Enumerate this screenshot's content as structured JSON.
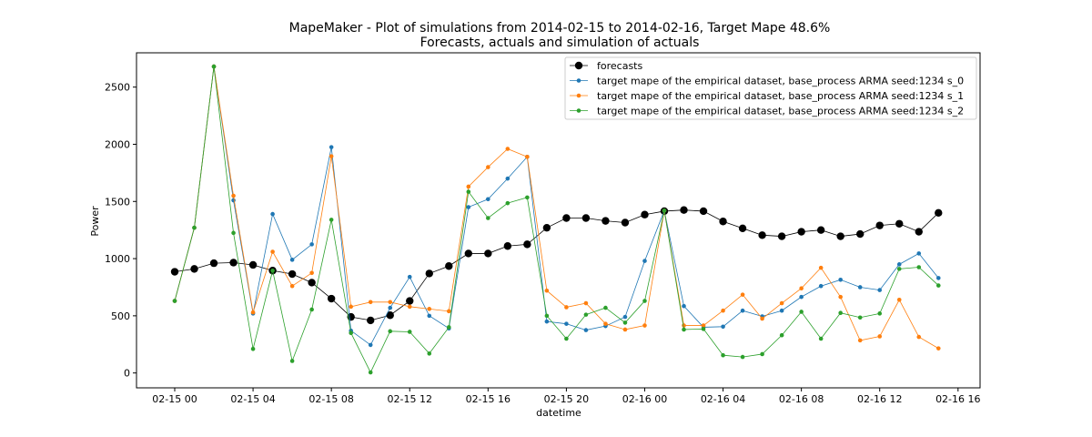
{
  "chart_data": {
    "type": "line",
    "title": "MapeMaker - Plot of simulations from 2014-02-15 to 2014-02-16, Target Mape 48.6%",
    "subtitle": "Forecasts, actuals and simulation of actuals",
    "xlabel": "datetime",
    "ylabel": "Power",
    "x": [
      "02-15 00",
      "02-15 01",
      "02-15 02",
      "02-15 03",
      "02-15 04",
      "02-15 05",
      "02-15 06",
      "02-15 07",
      "02-15 08",
      "02-15 09",
      "02-15 10",
      "02-15 11",
      "02-15 12",
      "02-15 13",
      "02-15 14",
      "02-15 15",
      "02-15 16",
      "02-15 17",
      "02-15 18",
      "02-15 19",
      "02-15 20",
      "02-15 21",
      "02-15 22",
      "02-15 23",
      "02-16 00",
      "02-16 01",
      "02-16 02",
      "02-16 03",
      "02-16 04",
      "02-16 05",
      "02-16 06",
      "02-16 07",
      "02-16 08",
      "02-16 09",
      "02-16 10",
      "02-16 11",
      "02-16 12",
      "02-16 13",
      "02-16 14",
      "02-16 15"
    ],
    "xticks": [
      "02-15 00",
      "02-15 04",
      "02-15 08",
      "02-15 12",
      "02-15 16",
      "02-15 20",
      "02-16 00",
      "02-16 04",
      "02-16 08",
      "02-16 12",
      "02-16 16"
    ],
    "yticks": [
      0,
      500,
      1000,
      1500,
      2000,
      2500
    ],
    "ylim": [
      -130,
      2800
    ],
    "grid": false,
    "legend_position": "top-right",
    "series": [
      {
        "name": "forecasts",
        "color": "#000000",
        "marker": "large",
        "values": [
          885,
          910,
          960,
          965,
          945,
          895,
          865,
          790,
          650,
          490,
          460,
          505,
          630,
          870,
          935,
          1045,
          1045,
          1110,
          1125,
          1270,
          1355,
          1355,
          1330,
          1315,
          1385,
          1415,
          1425,
          1415,
          1325,
          1265,
          1205,
          1195,
          1235,
          1250,
          1195,
          1215,
          1290,
          1305,
          1235,
          1400
        ]
      },
      {
        "name": "target mape  of the empirical dataset, base_process ARMA  seed:1234 s_0",
        "color": "#1f77b4",
        "marker": "small",
        "values": [
          630,
          1270,
          2680,
          1510,
          520,
          1390,
          990,
          1125,
          1975,
          370,
          245,
          570,
          840,
          500,
          390,
          1450,
          1520,
          1700,
          1890,
          450,
          430,
          375,
          410,
          490,
          980,
          1420,
          585,
          400,
          405,
          545,
          495,
          545,
          665,
          760,
          815,
          750,
          725,
          950,
          1045,
          830
        ]
      },
      {
        "name": "target mape  of the empirical dataset, base_process ARMA  seed:1234 s_1",
        "color": "#ff7f0e",
        "marker": "small",
        "values": [
          630,
          1270,
          2680,
          1550,
          530,
          1060,
          760,
          875,
          1895,
          580,
          620,
          620,
          580,
          560,
          540,
          1630,
          1800,
          1960,
          1890,
          720,
          575,
          610,
          430,
          380,
          415,
          1420,
          415,
          415,
          545,
          685,
          475,
          610,
          740,
          920,
          665,
          285,
          320,
          640,
          315,
          215
        ]
      },
      {
        "name": "target mape  of the empirical dataset, base_process ARMA  seed:1234 s_2",
        "color": "#2ca02c",
        "marker": "small",
        "values": [
          630,
          1270,
          2680,
          1225,
          210,
          895,
          105,
          555,
          1340,
          350,
          5,
          365,
          360,
          170,
          400,
          1585,
          1355,
          1485,
          1535,
          500,
          300,
          510,
          570,
          440,
          630,
          1420,
          380,
          385,
          155,
          140,
          165,
          330,
          535,
          300,
          525,
          485,
          520,
          910,
          925,
          765
        ]
      }
    ]
  }
}
